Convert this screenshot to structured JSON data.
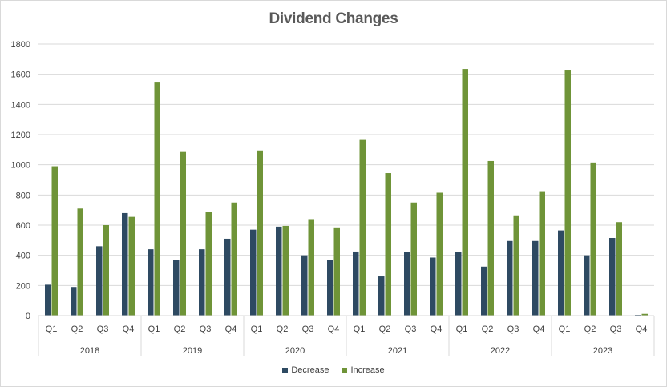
{
  "chart_data": {
    "type": "bar",
    "title": "Dividend Changes",
    "xlabel": "",
    "ylabel": "",
    "ylim": [
      0,
      1800
    ],
    "yticks": [
      0,
      200,
      400,
      600,
      800,
      1000,
      1200,
      1400,
      1600,
      1800
    ],
    "grid": true,
    "legend_position": "bottom",
    "groups": [
      {
        "label": "2018",
        "categories": [
          "Q1",
          "Q2",
          "Q3",
          "Q4"
        ]
      },
      {
        "label": "2019",
        "categories": [
          "Q1",
          "Q2",
          "Q3",
          "Q4"
        ]
      },
      {
        "label": "2020",
        "categories": [
          "Q1",
          "Q2",
          "Q3",
          "Q4"
        ]
      },
      {
        "label": "2021",
        "categories": [
          "Q1",
          "Q2",
          "Q3",
          "Q4"
        ]
      },
      {
        "label": "2022",
        "categories": [
          "Q1",
          "Q2",
          "Q3",
          "Q4"
        ]
      },
      {
        "label": "2023",
        "categories": [
          "Q1",
          "Q2",
          "Q3",
          "Q4"
        ]
      }
    ],
    "series": [
      {
        "name": "Decrease",
        "color": "#2e4a62",
        "values": [
          205,
          190,
          460,
          680,
          440,
          370,
          440,
          510,
          570,
          590,
          400,
          370,
          425,
          260,
          420,
          385,
          420,
          325,
          495,
          495,
          565,
          400,
          515,
          5
        ]
      },
      {
        "name": "Increase",
        "color": "#6f9438",
        "values": [
          990,
          710,
          600,
          655,
          1550,
          1085,
          690,
          750,
          1095,
          595,
          640,
          585,
          1165,
          945,
          750,
          815,
          1635,
          1025,
          665,
          820,
          1630,
          1015,
          620,
          12
        ]
      }
    ]
  }
}
